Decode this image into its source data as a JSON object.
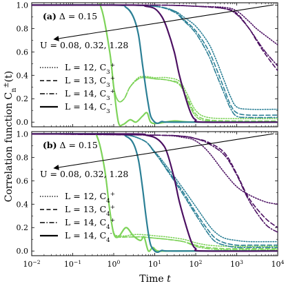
{
  "figure": {
    "xlabel": "Time t",
    "ylabel": "Correlation function C_n^±(t)"
  },
  "colors": {
    "U_0.08": "#7ed35a",
    "U_0.32": "#2b7f95",
    "U_1.28": "#4c1062",
    "arrow": "#000000"
  },
  "chart_data": [
    {
      "type": "line",
      "panel_label": "(a)",
      "param_text": "Δ = 0.15",
      "arrow_text": "U = 0.08, 0.32, 1.28",
      "xscale": "log",
      "xlim": [
        0.01,
        10000
      ],
      "ylim": [
        -0.04,
        1.02
      ],
      "x_ticks": [
        "10^-2",
        "10^-1",
        "10^0",
        "10^1",
        "10^2",
        "10^3",
        "10^4"
      ],
      "y_ticks": [
        "0.0",
        "0.2",
        "0.4",
        "0.6",
        "0.8",
        "1.0"
      ],
      "legend": [
        {
          "label": "L = 12, C_3^+",
          "style": "dotted"
        },
        {
          "label": "L = 13, C_3^+",
          "style": "dashed"
        },
        {
          "label": "L = 14, C_3^+",
          "style": "dashdot"
        },
        {
          "label": "L = 14, C_3^-",
          "style": "solid"
        }
      ],
      "series": [
        {
          "U": 0.08,
          "style": "solid",
          "x": [
            0.01,
            0.3,
            0.5,
            0.8,
            1.0,
            1.3,
            1.7,
            2.5,
            3.5,
            5,
            6.5,
            8,
            12,
            30,
            100,
            10000
          ],
          "y": [
            1.0,
            1.0,
            0.97,
            0.6,
            0.3,
            0.0,
            -0.02,
            0.02,
            0.0,
            0.05,
            0.08,
            0.0,
            -0.01,
            0.01,
            0.0,
            0.0
          ]
        },
        {
          "U": 0.08,
          "style": "dotted",
          "x": [
            0.01,
            0.3,
            0.5,
            0.8,
            1.0,
            1.3,
            1.8,
            2.5,
            4,
            6,
            10,
            20,
            40,
            60,
            100,
            200,
            1000,
            10000
          ],
          "y": [
            1.0,
            1.0,
            0.97,
            0.6,
            0.3,
            0.18,
            0.2,
            0.3,
            0.38,
            0.39,
            0.38,
            0.38,
            0.35,
            0.25,
            0.1,
            0.04,
            0.03,
            0.03
          ]
        },
        {
          "U": 0.08,
          "style": "dashed",
          "x": [
            0.01,
            0.3,
            0.5,
            0.8,
            1.0,
            1.3,
            1.8,
            2.5,
            4,
            6,
            10,
            20,
            40,
            60,
            100,
            200,
            1000,
            10000
          ],
          "y": [
            1.0,
            1.0,
            0.97,
            0.6,
            0.3,
            0.18,
            0.2,
            0.3,
            0.37,
            0.38,
            0.37,
            0.36,
            0.33,
            0.22,
            0.07,
            0.02,
            0.01,
            0.01
          ]
        },
        {
          "U": 0.08,
          "style": "dashdot",
          "x": [
            0.01,
            0.3,
            0.5,
            0.8,
            1.0,
            1.3,
            1.8,
            2.5,
            4,
            6,
            10,
            20,
            40,
            60,
            100,
            200,
            1000,
            10000
          ],
          "y": [
            1.0,
            1.0,
            0.97,
            0.6,
            0.3,
            0.18,
            0.2,
            0.3,
            0.37,
            0.38,
            0.37,
            0.36,
            0.32,
            0.2,
            0.05,
            0.01,
            0.0,
            0.0
          ]
        },
        {
          "U": 0.32,
          "style": "solid",
          "x": [
            0.01,
            1.0,
            2.0,
            3.0,
            4.0,
            5.0,
            6.0,
            7.0,
            8.0,
            10,
            12,
            15,
            20,
            100,
            10000
          ],
          "y": [
            1.0,
            1.0,
            0.98,
            0.9,
            0.75,
            0.5,
            0.3,
            0.15,
            0.05,
            0.0,
            -0.01,
            0.005,
            0.0,
            0.0,
            0.0
          ]
        },
        {
          "U": 0.32,
          "style": "dotted",
          "x": [
            0.01,
            1,
            10,
            30,
            50,
            100,
            200,
            300,
            500,
            700,
            1000,
            2000,
            10000
          ],
          "y": [
            1.0,
            1.0,
            0.99,
            0.95,
            0.9,
            0.82,
            0.68,
            0.55,
            0.35,
            0.22,
            0.13,
            0.11,
            0.11
          ]
        },
        {
          "U": 0.32,
          "style": "dashed",
          "x": [
            0.01,
            1,
            10,
            30,
            50,
            100,
            200,
            300,
            500,
            700,
            1000,
            2000,
            10000
          ],
          "y": [
            1.0,
            1.0,
            0.99,
            0.95,
            0.88,
            0.78,
            0.62,
            0.48,
            0.28,
            0.15,
            0.08,
            0.06,
            0.06
          ]
        },
        {
          "U": 0.32,
          "style": "dashdot",
          "x": [
            0.01,
            1,
            10,
            30,
            50,
            100,
            200,
            300,
            500,
            700,
            1000,
            2000,
            10000
          ],
          "y": [
            1.0,
            1.0,
            0.99,
            0.94,
            0.87,
            0.76,
            0.58,
            0.43,
            0.24,
            0.12,
            0.05,
            0.04,
            0.04
          ]
        },
        {
          "U": 1.28,
          "style": "solid",
          "x": [
            0.01,
            3,
            6,
            10,
            15,
            20,
            30,
            40,
            60,
            80,
            100,
            150,
            10000
          ],
          "y": [
            1.0,
            1.0,
            0.99,
            0.97,
            0.9,
            0.8,
            0.6,
            0.4,
            0.18,
            0.06,
            0.02,
            0.0,
            0.0
          ]
        },
        {
          "U": 1.28,
          "style": "dotted",
          "x": [
            0.01,
            10,
            100,
            500,
            1000,
            2000,
            3000,
            5000,
            10000
          ],
          "y": [
            1.0,
            1.0,
            0.99,
            0.98,
            0.95,
            0.86,
            0.8,
            0.74,
            0.66
          ]
        },
        {
          "U": 1.28,
          "style": "dashed",
          "x": [
            0.01,
            10,
            100,
            500,
            1000,
            2000,
            3000,
            5000,
            10000
          ],
          "y": [
            1.0,
            1.0,
            0.99,
            0.97,
            0.93,
            0.8,
            0.7,
            0.58,
            0.44
          ]
        },
        {
          "U": 1.28,
          "style": "dashdot",
          "x": [
            0.01,
            10,
            100,
            500,
            1000,
            2000,
            3000,
            5000,
            10000
          ],
          "y": [
            1.0,
            1.0,
            0.99,
            0.97,
            0.92,
            0.8,
            0.71,
            0.6,
            0.48
          ]
        }
      ]
    },
    {
      "type": "line",
      "panel_label": "(b)",
      "param_text": "Δ = 0.15",
      "arrow_text": "U = 0.08, 0.32, 1.28",
      "xscale": "log",
      "xlim": [
        0.01,
        10000
      ],
      "ylim": [
        -0.04,
        1.02
      ],
      "x_ticks": [
        "10^-2",
        "10^-1",
        "10^0",
        "10^1",
        "10^2",
        "10^3",
        "10^4"
      ],
      "y_ticks": [
        "0.0",
        "0.2",
        "0.4",
        "0.6",
        "0.8",
        "1.0"
      ],
      "legend": [
        {
          "label": "L = 12, C_4^+",
          "style": "dotted"
        },
        {
          "label": "L = 13, C_4^+",
          "style": "dashed"
        },
        {
          "label": "L = 14, C_4^+",
          "style": "dashdot"
        },
        {
          "label": "L = 14, C_4^-",
          "style": "solid"
        }
      ],
      "series": [
        {
          "U": 0.08,
          "style": "solid",
          "x": [
            0.01,
            0.25,
            0.4,
            0.6,
            0.8,
            1.0,
            1.3,
            2.0,
            3.0,
            4.5,
            5.5,
            7,
            9,
            12,
            30,
            10000
          ],
          "y": [
            1.0,
            1.0,
            0.97,
            0.7,
            0.35,
            0.15,
            0.12,
            0.2,
            0.13,
            0.09,
            0.12,
            0.0,
            0.03,
            0.0,
            0.0,
            0.0
          ]
        },
        {
          "U": 0.08,
          "style": "dotted",
          "x": [
            0.01,
            0.25,
            0.4,
            0.6,
            0.8,
            1.0,
            1.3,
            2,
            3,
            5,
            10,
            20,
            50,
            100,
            200,
            500,
            1000,
            10000
          ],
          "y": [
            1.0,
            1.0,
            0.97,
            0.7,
            0.35,
            0.16,
            0.13,
            0.13,
            0.14,
            0.14,
            0.13,
            0.12,
            0.1,
            0.07,
            0.05,
            0.04,
            0.04,
            0.04
          ]
        },
        {
          "U": 0.08,
          "style": "dashed",
          "x": [
            0.01,
            0.25,
            0.4,
            0.6,
            0.8,
            1.0,
            1.3,
            2,
            3,
            5,
            10,
            20,
            50,
            100,
            200,
            500,
            1000,
            10000
          ],
          "y": [
            1.0,
            1.0,
            0.97,
            0.7,
            0.35,
            0.15,
            0.12,
            0.12,
            0.12,
            0.12,
            0.11,
            0.1,
            0.08,
            0.05,
            0.03,
            0.02,
            0.02,
            0.02
          ]
        },
        {
          "U": 0.08,
          "style": "dashdot",
          "x": [
            0.01,
            0.25,
            0.4,
            0.6,
            0.8,
            1.0,
            1.3,
            2,
            3,
            5,
            10,
            20,
            50,
            100,
            200,
            500,
            1000,
            10000
          ],
          "y": [
            1.0,
            1.0,
            0.97,
            0.7,
            0.35,
            0.15,
            0.12,
            0.12,
            0.12,
            0.12,
            0.11,
            0.1,
            0.08,
            0.04,
            0.02,
            0.01,
            0.01,
            0.01
          ]
        },
        {
          "U": 0.32,
          "style": "solid",
          "x": [
            0.01,
            1.0,
            2.0,
            3.0,
            4.0,
            5.0,
            6.0,
            7.0,
            8.0,
            10,
            12,
            15,
            20,
            100,
            10000
          ],
          "y": [
            1.0,
            1.0,
            0.98,
            0.92,
            0.78,
            0.55,
            0.32,
            0.15,
            0.05,
            0.0,
            -0.01,
            0.005,
            0.0,
            0.0,
            0.0
          ]
        },
        {
          "U": 0.32,
          "style": "dotted",
          "x": [
            0.01,
            1,
            5,
            10,
            20,
            50,
            100,
            200,
            300,
            500,
            1000,
            2000,
            10000
          ],
          "y": [
            1.0,
            1.0,
            0.95,
            0.85,
            0.72,
            0.53,
            0.38,
            0.23,
            0.16,
            0.11,
            0.09,
            0.08,
            0.08
          ]
        },
        {
          "U": 0.32,
          "style": "dashed",
          "x": [
            0.01,
            1,
            5,
            10,
            20,
            50,
            100,
            200,
            300,
            500,
            1000,
            2000,
            10000
          ],
          "y": [
            1.0,
            1.0,
            0.95,
            0.84,
            0.7,
            0.5,
            0.33,
            0.18,
            0.11,
            0.07,
            0.05,
            0.05,
            0.05
          ]
        },
        {
          "U": 0.32,
          "style": "dashdot",
          "x": [
            0.01,
            1,
            5,
            10,
            20,
            50,
            100,
            200,
            300,
            500,
            1000,
            2000,
            10000
          ],
          "y": [
            1.0,
            1.0,
            0.95,
            0.84,
            0.69,
            0.48,
            0.31,
            0.15,
            0.08,
            0.05,
            0.03,
            0.03,
            0.03
          ]
        },
        {
          "U": 1.28,
          "style": "solid",
          "x": [
            0.01,
            3,
            6,
            10,
            15,
            20,
            30,
            40,
            60,
            80,
            100,
            150,
            10000
          ],
          "y": [
            1.0,
            1.0,
            0.99,
            0.97,
            0.92,
            0.84,
            0.62,
            0.42,
            0.2,
            0.07,
            0.02,
            0.0,
            0.0
          ]
        },
        {
          "U": 1.28,
          "style": "dotted",
          "x": [
            0.01,
            10,
            50,
            100,
            200,
            500,
            1000,
            2000,
            5000,
            10000
          ],
          "y": [
            1.0,
            0.99,
            0.97,
            0.94,
            0.85,
            0.67,
            0.55,
            0.48,
            0.42,
            0.4
          ]
        },
        {
          "U": 1.28,
          "style": "dashed",
          "x": [
            0.01,
            10,
            50,
            100,
            200,
            500,
            1000,
            2000,
            5000,
            10000
          ],
          "y": [
            1.0,
            0.99,
            0.98,
            0.96,
            0.93,
            0.84,
            0.66,
            0.45,
            0.28,
            0.2
          ]
        },
        {
          "U": 1.28,
          "style": "dashdot",
          "x": [
            0.01,
            10,
            50,
            100,
            200,
            500,
            1000,
            2000,
            5000,
            10000
          ],
          "y": [
            1.0,
            0.99,
            0.98,
            0.96,
            0.92,
            0.82,
            0.65,
            0.43,
            0.23,
            0.16
          ]
        }
      ]
    }
  ]
}
